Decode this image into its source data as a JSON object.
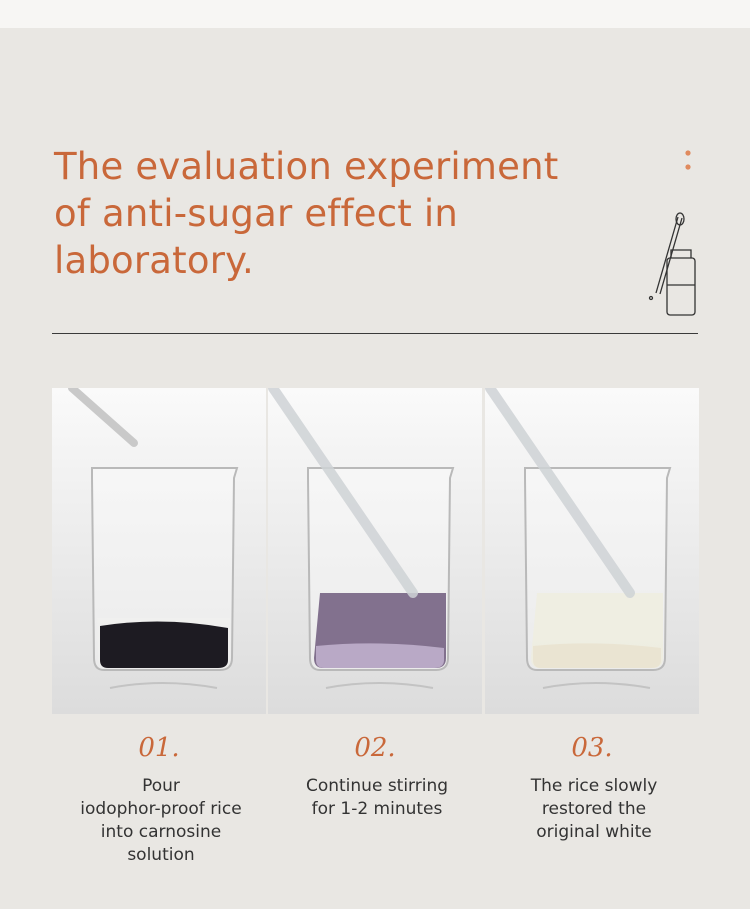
{
  "header": {
    "title_lines": [
      "The evaluation experiment",
      "of anti-sugar effect in",
      "laboratory."
    ]
  },
  "steps": [
    {
      "number": "01.",
      "caption_lines": [
        "Pour",
        "iodophor-proof rice",
        "into carnosine",
        "solution"
      ]
    },
    {
      "number": "02.",
      "caption_lines": [
        "Continue stirring",
        "for 1-2 minutes"
      ]
    },
    {
      "number": "03.",
      "caption_lines": [
        "The rice slowly",
        "restored the",
        "original white"
      ]
    }
  ]
}
